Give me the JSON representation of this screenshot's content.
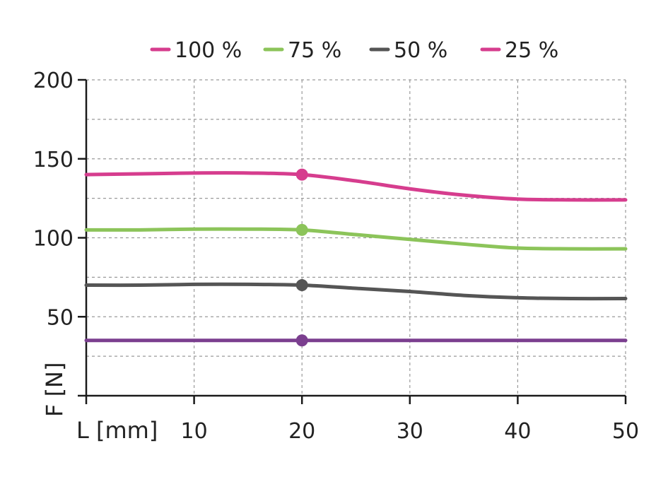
{
  "chart_data": {
    "type": "line",
    "xlabel": "L [mm]",
    "ylabel": "F [N]",
    "xlim": [
      0,
      50
    ],
    "ylim": [
      0,
      200
    ],
    "x_ticks": [
      10,
      20,
      30,
      40,
      50
    ],
    "y_ticks": [
      50,
      100,
      150,
      200
    ],
    "x_tick_labels": [
      "10",
      "20",
      "30",
      "40",
      "50"
    ],
    "y_tick_labels": [
      "50",
      "100",
      "150",
      "200"
    ],
    "grid": true,
    "legend_position": "top",
    "marker_x": 20,
    "series": [
      {
        "name": "100 %",
        "color": "#d63d8e",
        "x": [
          0,
          5,
          10,
          15,
          20,
          25,
          30,
          35,
          40,
          45,
          50
        ],
        "y": [
          140,
          140.5,
          141,
          141,
          140,
          136,
          131,
          127,
          124.5,
          124,
          124
        ]
      },
      {
        "name": "75 %",
        "color": "#8cc45a",
        "x": [
          0,
          5,
          10,
          15,
          20,
          25,
          30,
          35,
          40,
          45,
          50
        ],
        "y": [
          105,
          105,
          105.5,
          105.5,
          105,
          102,
          99,
          96,
          93.5,
          93,
          93
        ]
      },
      {
        "name": "50 %",
        "color": "#555555",
        "x": [
          0,
          5,
          10,
          15,
          20,
          25,
          30,
          35,
          40,
          45,
          50
        ],
        "y": [
          70,
          70,
          70.5,
          70.5,
          70,
          68,
          66,
          63.5,
          62,
          61.5,
          61.5
        ]
      },
      {
        "name": "25 %",
        "color": "#d63d8e",
        "line_color": "#7b3f8f",
        "x": [
          0,
          10,
          20,
          30,
          40,
          50
        ],
        "y": [
          35,
          35,
          35,
          35,
          35,
          35
        ]
      }
    ]
  }
}
